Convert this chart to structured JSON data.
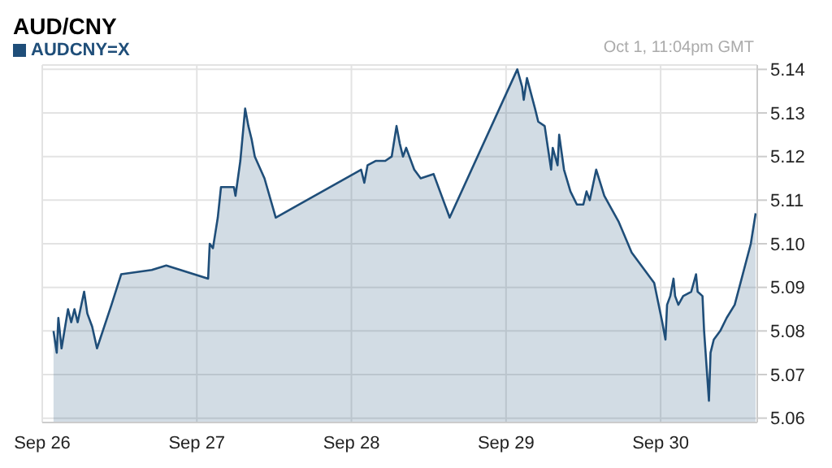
{
  "chart_data": {
    "type": "area",
    "title": "AUD/CNY",
    "annotations": [
      "Oct 1, 11:04pm GMT"
    ],
    "x": [
      "--09-26T01:45",
      "--09-26T02:15",
      "--09-26T02:30",
      "--09-26T03:00",
      "--09-26T04:00",
      "--09-26T04:30",
      "--09-26T05:00",
      "--09-26T05:30",
      "--09-26T06:30",
      "--09-26T07:00",
      "--09-26T07:45",
      "--09-26T08:30",
      "--09-26T10:45",
      "--09-26T12:15",
      "--09-26T17:00",
      "--09-26T19:15",
      "--09-27T01:45",
      "--09-27T02:00",
      "--09-27T02:30",
      "--09-27T03:15",
      "--09-27T03:45",
      "--09-27T05:45",
      "--09-27T06:00",
      "--09-27T06:45",
      "--09-27T07:30",
      "--09-27T08:00",
      "--09-27T08:30",
      "--09-27T09:00",
      "--09-27T10:30",
      "--09-27T12:15",
      "--09-28T01:30",
      "--09-28T02:00",
      "--09-28T02:30",
      "--09-28T03:45",
      "--09-28T05:15",
      "--09-28T06:15",
      "--09-28T07:00",
      "--09-28T07:30",
      "--09-28T08:00",
      "--09-28T08:30",
      "--09-28T09:45",
      "--09-28T10:45",
      "--09-28T12:45",
      "--09-28T14:45",
      "--09-28T15:15",
      "--09-29T01:45",
      "--09-29T02:30",
      "--09-29T02:45",
      "--09-29T03:15",
      "--09-29T04:30",
      "--09-29T05:00",
      "--09-29T06:00",
      "--09-29T06:30",
      "--09-29T07:00",
      "--09-29T07:15",
      "--09-29T08:00",
      "--09-29T08:15",
      "--09-29T09:00",
      "--09-29T10:00",
      "--09-29T11:00",
      "--09-29T12:00",
      "--09-29T12:30",
      "--09-29T13:00",
      "--09-29T14:00",
      "--09-29T15:15",
      "--09-29T17:30",
      "--09-29T19:30",
      "--09-29T23:00",
      "--09-30T00:15",
      "--09-30T00:45",
      "--09-30T01:00",
      "--09-30T01:30",
      "--09-30T02:00",
      "--09-30T02:15",
      "--09-30T02:45",
      "--09-30T03:30",
      "--09-30T04:45",
      "--09-30T05:30",
      "--09-30T05:45",
      "--09-30T06:30",
      "--09-30T06:45",
      "--09-30T07:30",
      "--09-30T07:45",
      "--09-30T08:15",
      "--09-30T09:15",
      "--09-30T10:15",
      "--09-30T11:30",
      "--09-30T12:45",
      "--09-30T14:00",
      "--09-30T14:45"
    ],
    "series": [
      {
        "name": "AUDCNY=X",
        "color": "#1f4e79",
        "values": [
          5.08,
          5.075,
          5.083,
          5.076,
          5.085,
          5.082,
          5.085,
          5.082,
          5.089,
          5.084,
          5.081,
          5.076,
          5.086,
          5.093,
          5.094,
          5.095,
          5.092,
          5.1,
          5.099,
          5.106,
          5.113,
          5.113,
          5.111,
          5.119,
          5.131,
          5.127,
          5.124,
          5.12,
          5.115,
          5.106,
          5.117,
          5.114,
          5.118,
          5.119,
          5.119,
          5.12,
          5.127,
          5.123,
          5.12,
          5.122,
          5.117,
          5.115,
          5.116,
          5.108,
          5.106,
          5.14,
          5.136,
          5.133,
          5.138,
          5.131,
          5.128,
          5.127,
          5.122,
          5.117,
          5.122,
          5.118,
          5.125,
          5.117,
          5.112,
          5.109,
          5.109,
          5.112,
          5.11,
          5.117,
          5.111,
          5.105,
          5.098,
          5.091,
          5.082,
          5.078,
          5.086,
          5.088,
          5.092,
          5.088,
          5.086,
          5.088,
          5.089,
          5.093,
          5.089,
          5.088,
          5.08,
          5.064,
          5.075,
          5.078,
          5.08,
          5.083,
          5.086,
          5.093,
          5.1,
          5.107
        ]
      }
    ],
    "xlim": [
      "--09-26T00:00",
      "--09-30T15:00"
    ],
    "xticks": [
      {
        "value": "--09-26T00:00",
        "label": "Sep 26"
      },
      {
        "value": "--09-27T00:00",
        "label": "Sep 27"
      },
      {
        "value": "--09-28T00:00",
        "label": "Sep 28"
      },
      {
        "value": "--09-29T00:00",
        "label": "Sep 29"
      },
      {
        "value": "--09-30T00:00",
        "label": "Sep 30"
      }
    ],
    "ylim": [
      5.059,
      5.141
    ],
    "yticks": [
      {
        "value": 5.06,
        "label": "5.06"
      },
      {
        "value": 5.07,
        "label": "5.07"
      },
      {
        "value": 5.08,
        "label": "5.08"
      },
      {
        "value": 5.09,
        "label": "5.09"
      },
      {
        "value": 5.1,
        "label": "5.10"
      },
      {
        "value": 5.11,
        "label": "5.11"
      },
      {
        "value": 5.12,
        "label": "5.12"
      },
      {
        "value": 5.13,
        "label": "5.13"
      },
      {
        "value": 5.14,
        "label": "5.14"
      }
    ],
    "grid": true,
    "legend": "top left"
  }
}
